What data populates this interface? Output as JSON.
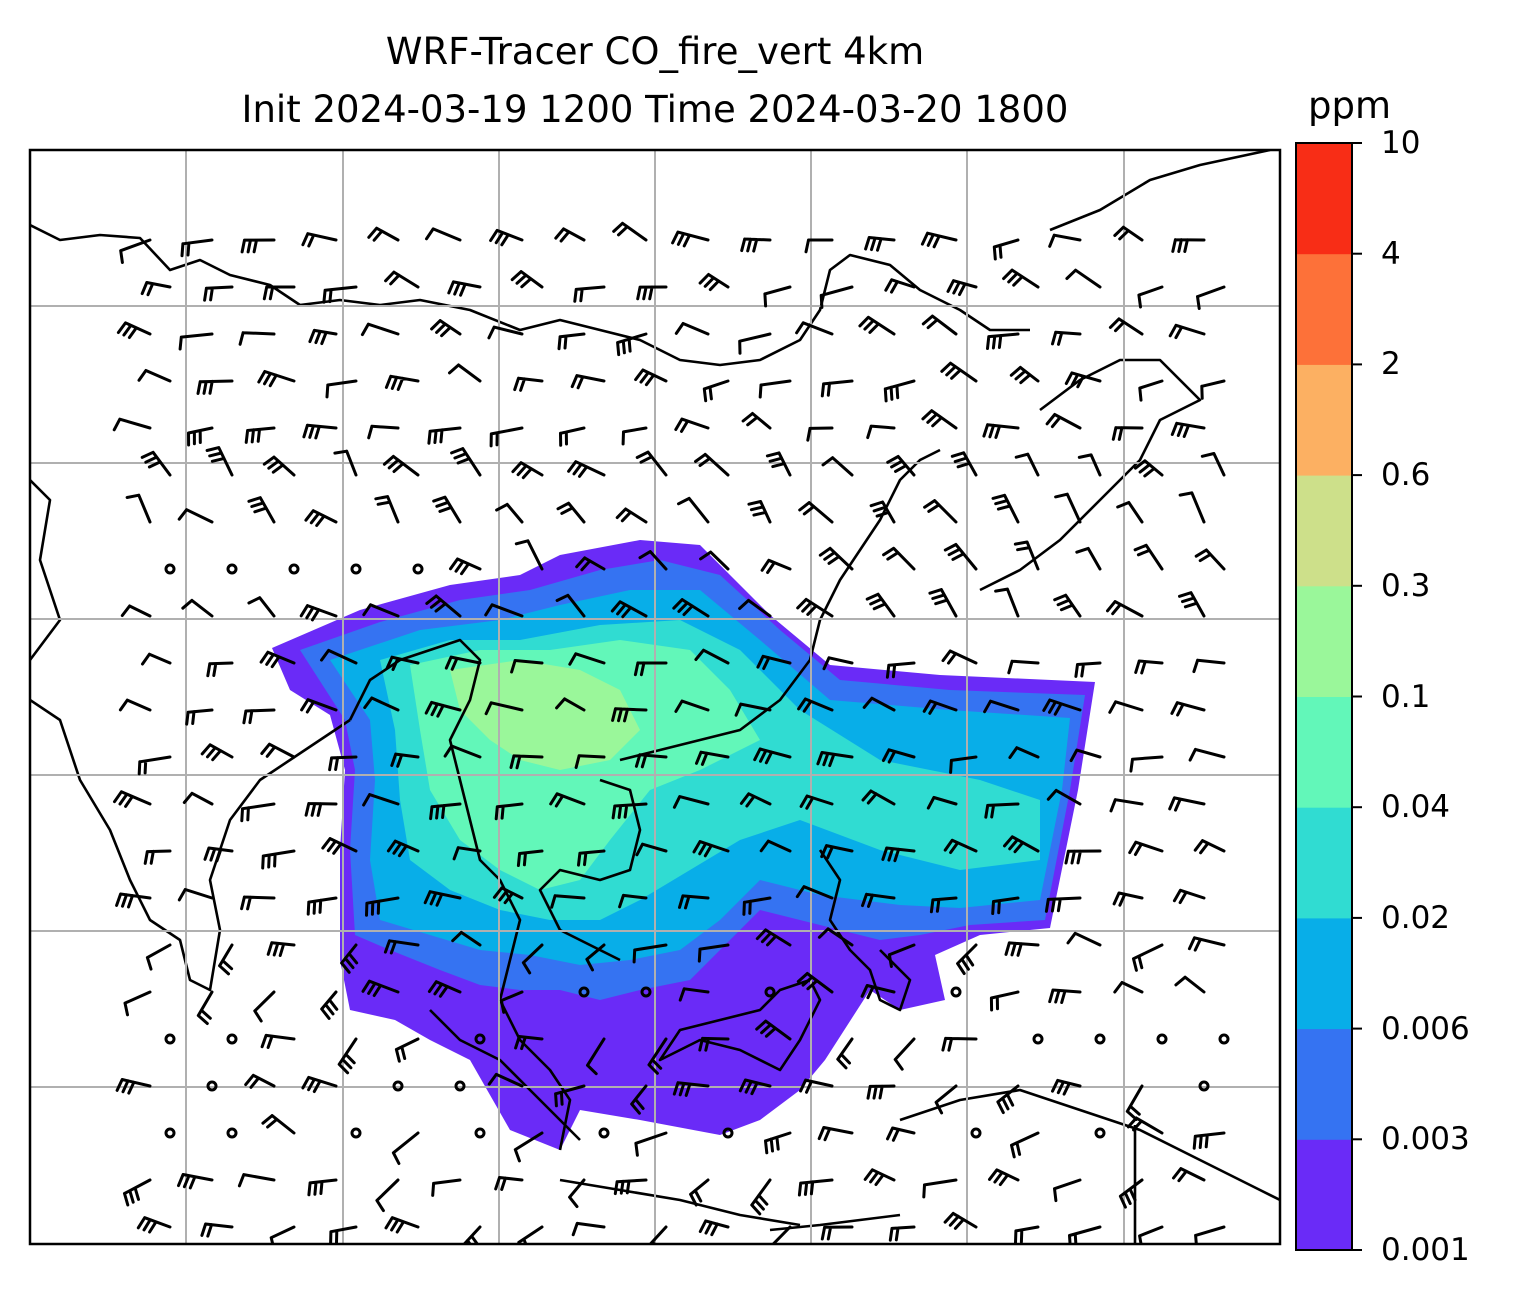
{
  "title_line1": "WRF-Tracer CO_fire_vert 4km",
  "title_line2": "Init 2024-03-19 1200 Time 2024-03-20 1800",
  "colorbar": {
    "unit": "ppm",
    "levels": [
      "0.001",
      "0.003",
      "0.006",
      "0.02",
      "0.04",
      "0.1",
      "0.3",
      "0.6",
      "2",
      "4",
      "10"
    ],
    "colors": [
      "#6a2bf7",
      "#3573f2",
      "#08aee8",
      "#30dcd2",
      "#62f7b9",
      "#9af79a",
      "#cde08a",
      "#fcb062",
      "#fd7139",
      "#f82d16"
    ]
  },
  "map": {
    "plume_colors": [
      "#6a2bf7",
      "#3573f2",
      "#08aee8",
      "#30dcd2",
      "#62f7b9",
      "#9af79a"
    ],
    "gridline_color": "#b0b0b0",
    "coastline_color": "#000000"
  }
}
